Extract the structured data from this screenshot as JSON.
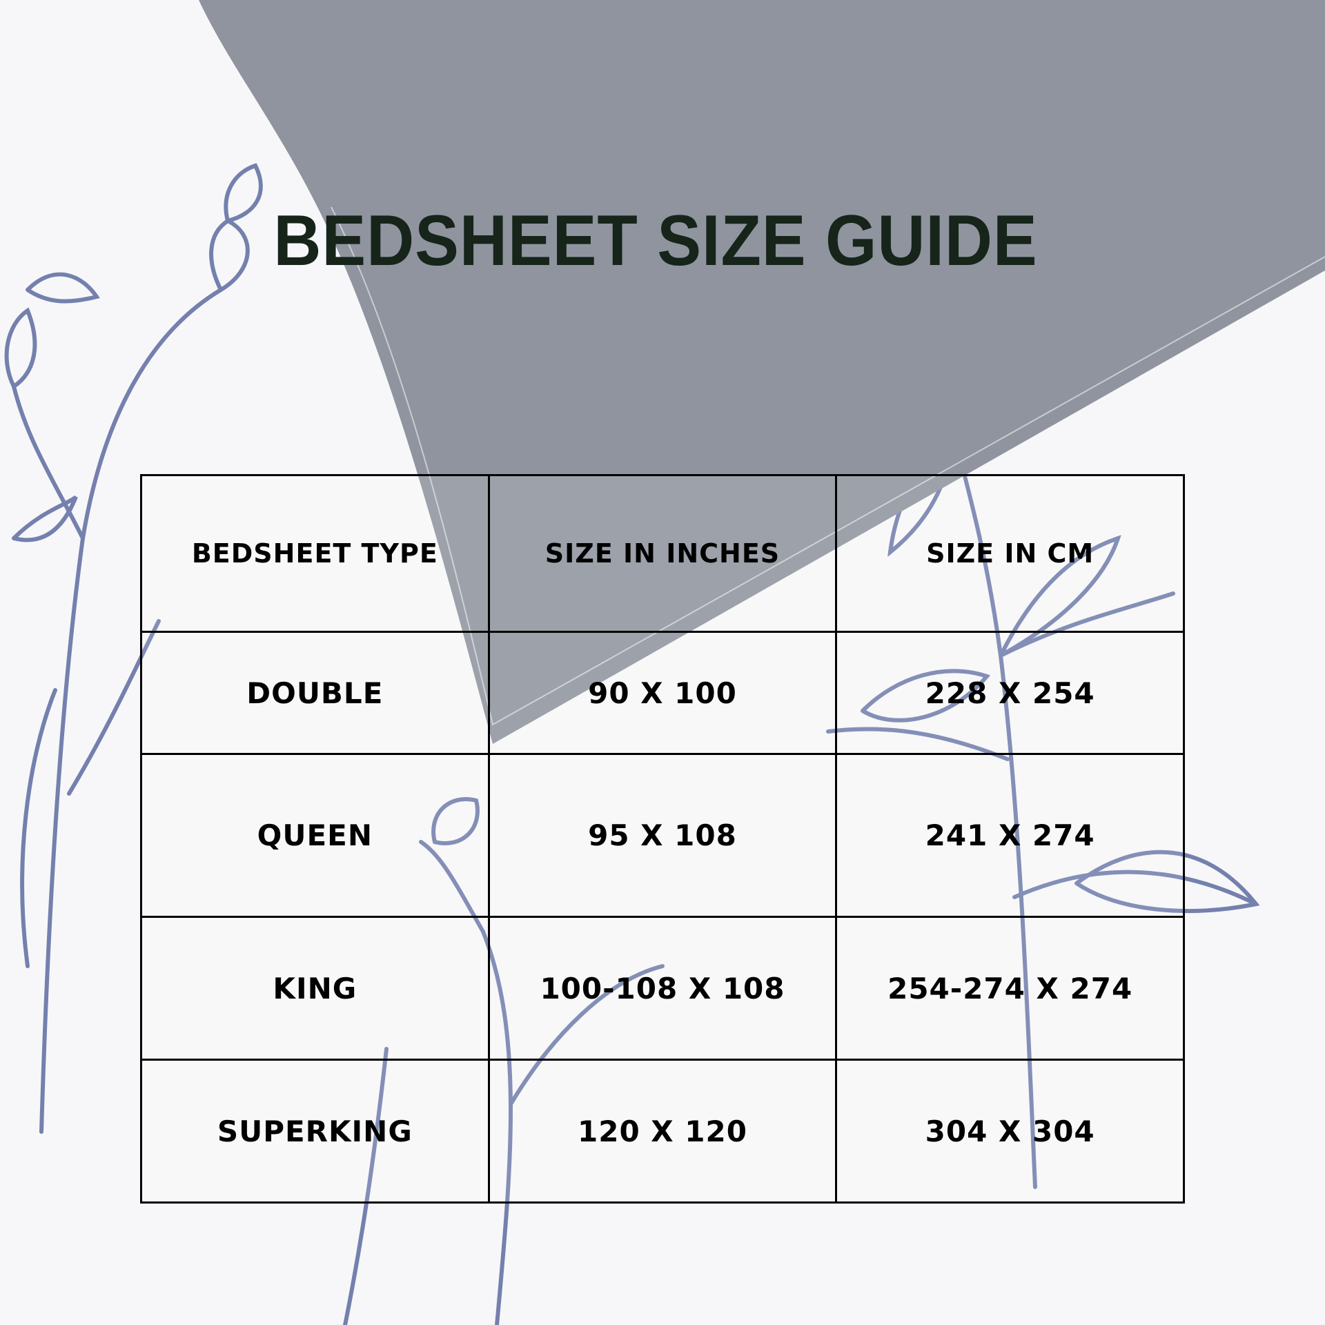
{
  "title": "BEDSHEET SIZE GUIDE",
  "table": {
    "headers": [
      "BEDSHEET TYPE",
      "SIZE IN INCHES",
      "SIZE IN CM"
    ],
    "rows": [
      [
        "DOUBLE",
        "90 X 100",
        "228 X 254"
      ],
      [
        "QUEEN",
        "95 X 108",
        "241 X 274"
      ],
      [
        "KING",
        "100-108 X 108",
        "254-274 X 274"
      ],
      [
        "SUPERKING",
        "120 X 120",
        "304 X 304"
      ]
    ]
  },
  "colors": {
    "background": "#f7f7f9",
    "pillow": "#8f949f",
    "floral": "#6f7cab",
    "title": "#16241a"
  }
}
